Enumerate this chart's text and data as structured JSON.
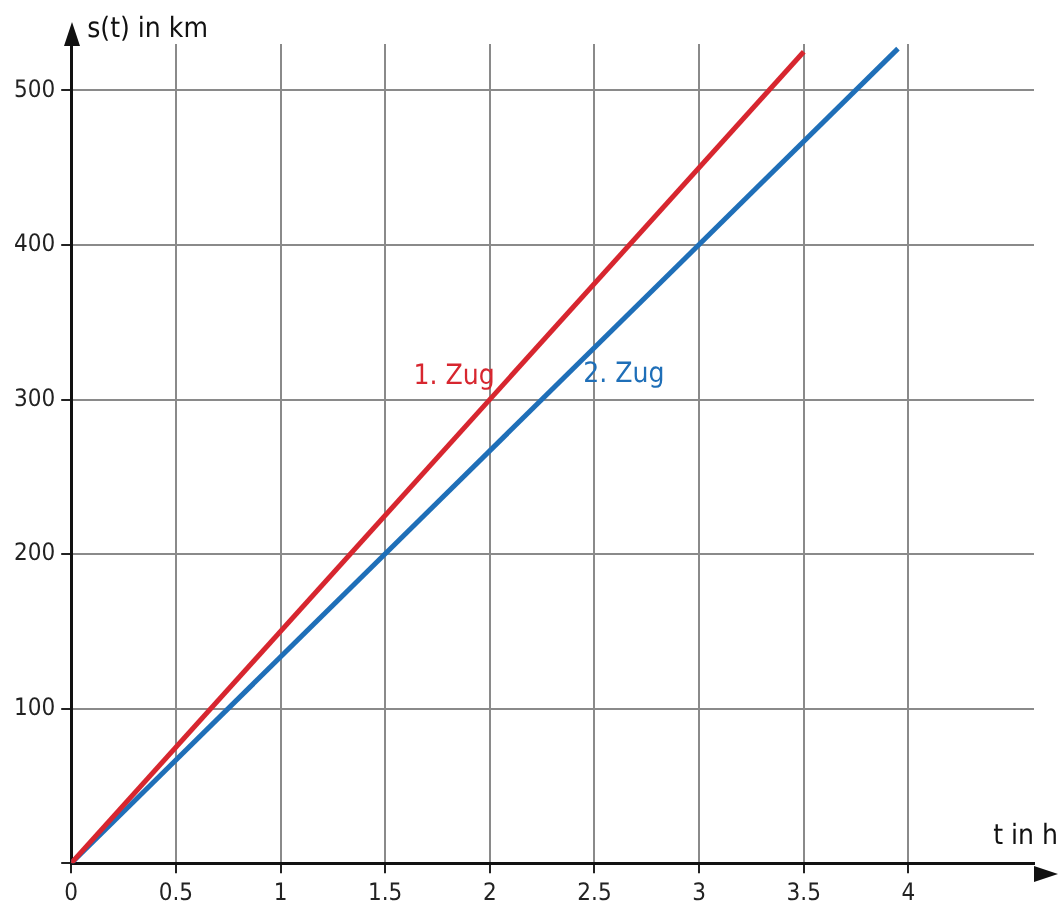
{
  "chart_data": {
    "type": "line",
    "xlabel": "t in h",
    "ylabel": "s(t) in km",
    "xlim": [
      0,
      4.6
    ],
    "xticks": [
      0,
      0.5,
      1,
      1.5,
      2,
      2.5,
      3,
      3.5,
      4
    ],
    "ylim": [
      0,
      530
    ],
    "yticks": [
      {
        "value": 0,
        "label": null
      },
      100,
      200,
      300,
      400,
      500
    ],
    "grid": true,
    "legend": false,
    "marker": "none",
    "line_style": "solid",
    "series": [
      {
        "name": "1. Zug",
        "color": "#d7262f",
        "x": [
          0,
          3.5
        ],
        "values": [
          0,
          525
        ]
      },
      {
        "name": "2. Zug",
        "color": "#1f6fb8",
        "x": [
          0,
          3.95
        ],
        "values": [
          0,
          527
        ]
      }
    ]
  }
}
